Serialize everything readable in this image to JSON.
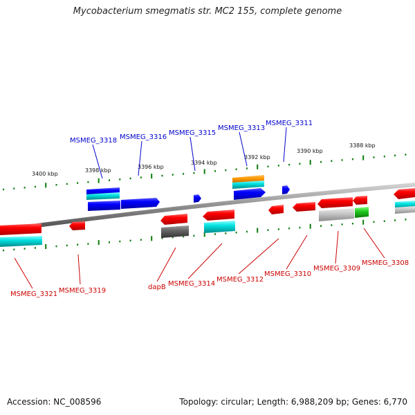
{
  "title": "Mycobacterium smegmatis str. MC2 155, complete genome",
  "accession": "Accession: NC_008596",
  "summary": "Topology: circular; Length: 6,988,209 bp; Genes: 6,770",
  "colors": {
    "top_strand_label": "#0000cc",
    "bottom_strand_label": "#cc0000",
    "tick_marks": "#0a7a0a",
    "backbone": "#888888"
  },
  "tick_labels": [
    "3400 kbp",
    "3398 kbp",
    "3396 kbp",
    "3394 kbp",
    "3392 kbp",
    "3390 kbp",
    "3388 kbp"
  ],
  "top_labels": [
    "MSMEG_3318",
    "MSMEG_3316",
    "MSMEG_3315",
    "MSMEG_3313",
    "MSMEG_3311"
  ],
  "bottom_labels": [
    "MSMEG_3321",
    "MSMEG_3319",
    "dapB",
    "MSMEG_3314",
    "MSMEG_3312",
    "MSMEG_3310",
    "MSMEG_3309",
    "MSMEG_3308"
  ]
}
